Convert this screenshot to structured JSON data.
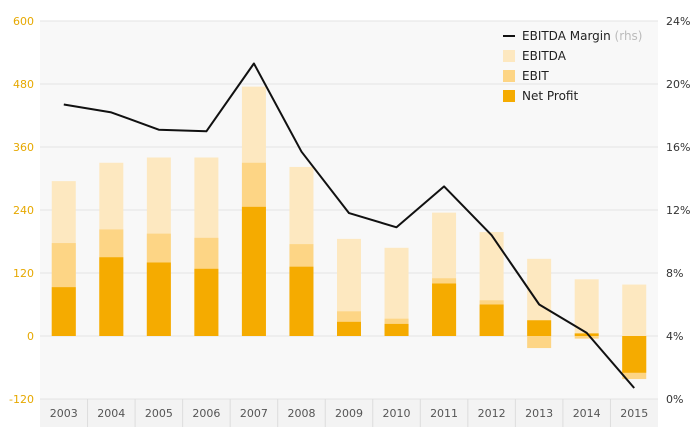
{
  "chart_data": {
    "type": "bar",
    "stacked_overlap": true,
    "categories": [
      "2003",
      "2004",
      "2005",
      "2006",
      "2007",
      "2008",
      "2009",
      "2010",
      "2011",
      "2012",
      "2013",
      "2014",
      "2015"
    ],
    "series": [
      {
        "name": "EBITDA",
        "kind": "bar",
        "axis": "left",
        "color": "#fde8c0",
        "values": [
          295,
          330,
          340,
          340,
          475,
          322,
          185,
          168,
          235,
          198,
          147,
          108,
          98
        ]
      },
      {
        "name": "EBIT",
        "kind": "bar",
        "axis": "left",
        "color": "#fdd585",
        "values": [
          177,
          203,
          195,
          187,
          330,
          175,
          47,
          33,
          110,
          68,
          -23,
          -5,
          -82
        ]
      },
      {
        "name": "Net Profit",
        "kind": "bar",
        "axis": "left",
        "color": "#f5ab00",
        "values": [
          93,
          150,
          140,
          128,
          246,
          132,
          27,
          23,
          100,
          60,
          30,
          5,
          -70
        ]
      },
      {
        "name": "EBITDA Margin",
        "kind": "line",
        "axis": "right",
        "color": "#111111",
        "values": [
          18.7,
          18.2,
          17.1,
          17.0,
          21.3,
          15.7,
          11.8,
          10.9,
          13.5,
          10.4,
          6.0,
          4.2,
          0.7
        ]
      }
    ],
    "legend": {
      "position": "top-right",
      "items": [
        {
          "label": "EBITDA Margin",
          "note": "(rhs)",
          "marker": "line",
          "color": "#111111"
        },
        {
          "label": "EBITDA",
          "note": "",
          "marker": "box",
          "color": "#fde8c0"
        },
        {
          "label": "EBIT",
          "note": "",
          "marker": "box",
          "color": "#fdd585"
        },
        {
          "label": "Net Profit",
          "note": "",
          "marker": "box",
          "color": "#f5ab00"
        }
      ]
    },
    "y_left": {
      "min": -120,
      "max": 600,
      "ticks": [
        "-120",
        "0",
        "120",
        "240",
        "360",
        "480",
        "600"
      ],
      "tick_color": "#e6a800"
    },
    "y_right": {
      "min": 0,
      "max": 24,
      "ticks": [
        "0%",
        "4%",
        "8%",
        "12%",
        "16%",
        "20%",
        "24%"
      ],
      "tick_color": "#333333"
    },
    "grid": true
  }
}
